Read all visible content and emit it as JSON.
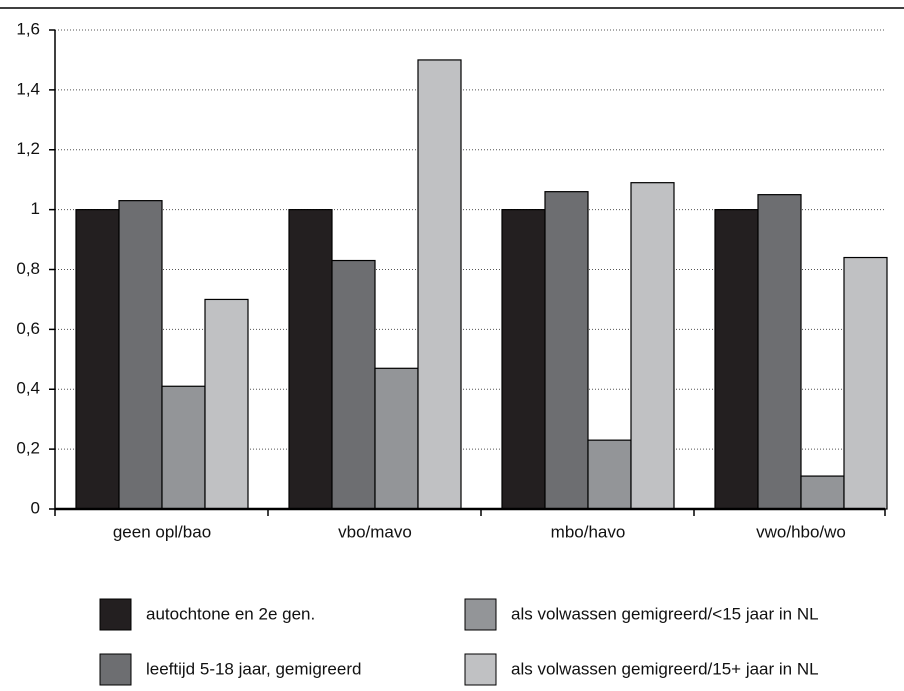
{
  "chart_data": {
    "type": "bar",
    "categories": [
      "geen opl/bao",
      "vbo/mavo",
      "mbo/havo",
      "vwo/hbo/wo"
    ],
    "series": [
      {
        "name": "autochtone en 2e gen.",
        "color": "#231f20",
        "values": [
          1,
          1,
          1,
          1
        ]
      },
      {
        "name": "leeftijd 5-18 jaar, gemigreerd",
        "color": "#6d6e71",
        "values": [
          1.03,
          0.83,
          1.06,
          1.05
        ]
      },
      {
        "name": "als volwassen gemigreerd/<15 jaar in NL",
        "color": "#939598",
        "values": [
          0.41,
          0.47,
          0.23,
          0.11
        ]
      },
      {
        "name": "als volwassen gemigreerd/15+ jaar in NL",
        "color": "#c0c1c3",
        "values": [
          0.7,
          1.5,
          1.09,
          0.84
        ]
      }
    ],
    "ylim": [
      0,
      1.6
    ],
    "yticks": [
      0,
      {
        "value": 0.2,
        "label": "0,2"
      },
      {
        "value": 0.4,
        "label": "0,4"
      },
      {
        "value": 0.6,
        "label": "0,6"
      },
      {
        "value": 0.8,
        "label": "0,8"
      },
      1,
      {
        "value": 1.2,
        "label": "1,2"
      },
      {
        "value": 1.4,
        "label": "1,4"
      },
      {
        "value": 1.6,
        "label": "1,6"
      }
    ],
    "grid": true
  }
}
